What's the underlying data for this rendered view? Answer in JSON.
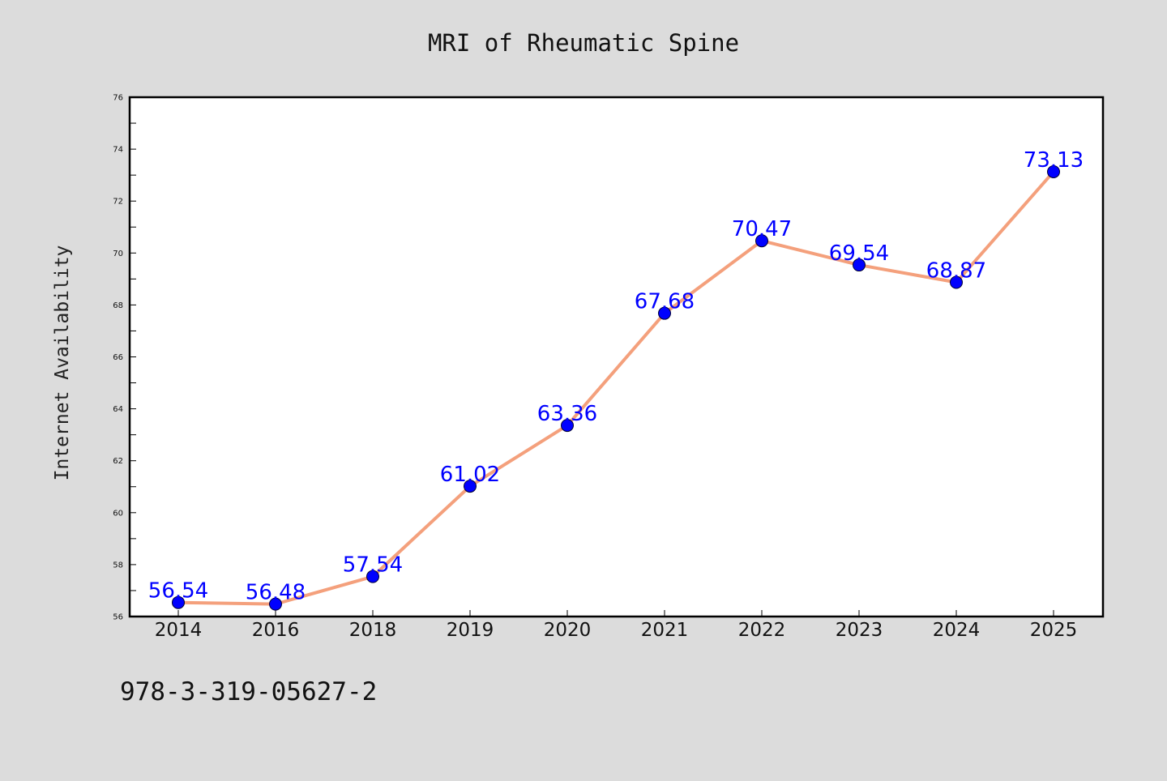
{
  "chart_data": {
    "type": "line",
    "title": "MRI of Rheumatic Spine",
    "xlabel": "",
    "ylabel": "Internet Availability",
    "categories": [
      "2014",
      "2016",
      "2018",
      "2019",
      "2020",
      "2021",
      "2022",
      "2023",
      "2024",
      "2025"
    ],
    "series": [
      {
        "values": [
          56.54,
          56.48,
          57.54,
          61.02,
          63.36,
          67.68,
          70.47,
          69.54,
          68.87,
          73.13
        ],
        "data_labels": [
          "56.54",
          "56.48",
          "57.54",
          "61.02",
          "63.36",
          "67.68",
          "70.47",
          "69.54",
          "68.87",
          "73.13"
        ],
        "line_color": "#f4a07c",
        "marker_color": "#0000ff"
      }
    ],
    "ylim": [
      56,
      76
    ],
    "yticks": [
      "56",
      "58",
      "60",
      "62",
      "64",
      "66",
      "68",
      "70",
      "72",
      "74",
      "76"
    ],
    "grid": false,
    "legend": "none",
    "annotation": "978-3-319-05627-2",
    "background": "#dcdcdc",
    "plot_background": "#ffffff"
  }
}
